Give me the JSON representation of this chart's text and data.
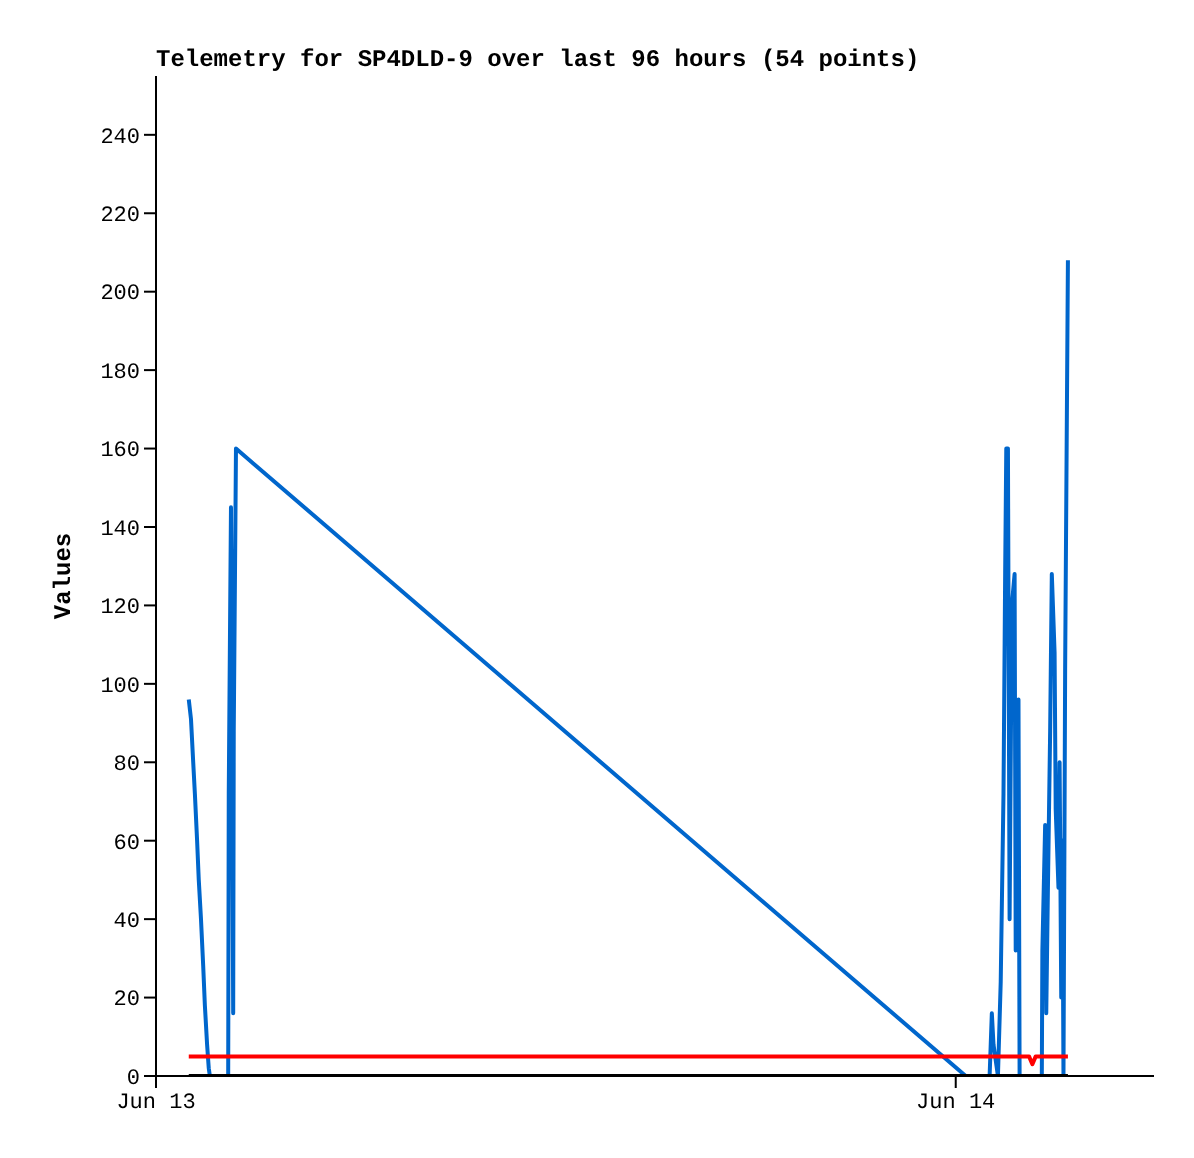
{
  "chart_data": {
    "type": "line",
    "title": "Telemetry for SP4DLD-9 over last 96 hours (54 points)",
    "ylabel": "Values",
    "xlim": [
      "--06-13T00:00",
      "--06-14T05:57"
    ],
    "xticks": [
      {
        "value": "--06-13",
        "label": "Jun 13"
      },
      {
        "value": "--06-14",
        "label": "Jun 14"
      }
    ],
    "ylim": [
      0,
      255
    ],
    "yticks": [
      0,
      20,
      40,
      60,
      80,
      100,
      120,
      140,
      160,
      180,
      200,
      220,
      240
    ],
    "grid": false,
    "marker": "none",
    "line_style": "solid",
    "series": [
      {
        "color": "#0066cc",
        "x": [
          "--06-13T00:59",
          "--06-13T01:03",
          "--06-13T01:07",
          "--06-13T01:10",
          "--06-13T01:14",
          "--06-13T01:17",
          "--06-13T01:21",
          "--06-13T01:25",
          "--06-13T01:28",
          "--06-13T01:32",
          "--06-13T01:35",
          "--06-13T01:37",
          "--06-13T02:10",
          "--06-13T02:11",
          "--06-13T02:15",
          "--06-13T02:19",
          "--06-13T02:20",
          "--06-13T02:24",
          "--06-14T00:18",
          "--06-14T01:01",
          "--06-14T01:05",
          "--06-14T01:08",
          "--06-14T01:16",
          "--06-14T01:21",
          "--06-14T01:26",
          "--06-14T01:29",
          "--06-14T01:31",
          "--06-14T01:34",
          "--06-14T01:37",
          "--06-14T01:41",
          "--06-14T01:46",
          "--06-14T01:48",
          "--06-14T01:53",
          "--06-14T01:55",
          "--06-14T02:35",
          "--06-14T02:36",
          "--06-14T02:41",
          "--06-14T02:43",
          "--06-14T02:46",
          "--06-14T02:50",
          "--06-14T02:53",
          "--06-14T02:58",
          "--06-14T03:00",
          "--06-14T03:05",
          "--06-14T03:07",
          "--06-14T03:10",
          "--06-14T03:12",
          "--06-14T03:14",
          "--06-14T03:17",
          "--06-14T03:22"
        ],
        "values": [
          96,
          91,
          80,
          72,
          60,
          50,
          40,
          28,
          18,
          8,
          2,
          0,
          0,
          72,
          145,
          16,
          88,
          160,
          0,
          0,
          16,
          8,
          0,
          24,
          72,
          128,
          160,
          160,
          40,
          120,
          128,
          32,
          96,
          0,
          0,
          32,
          64,
          16,
          48,
          88,
          128,
          108,
          68,
          48,
          80,
          20,
          60,
          0,
          104,
          208
        ]
      },
      {
        "color": "#ff0000",
        "x": [
          "--06-13T00:59",
          "--06-14T02:12",
          "--06-14T02:18",
          "--06-14T02:24",
          "--06-14T03:22"
        ],
        "values": [
          5,
          5,
          3,
          5,
          5
        ]
      },
      {
        "color": "#000000",
        "x": [
          "--06-13T00:59",
          "--06-14T03:22"
        ],
        "values": [
          0,
          0
        ]
      }
    ]
  }
}
